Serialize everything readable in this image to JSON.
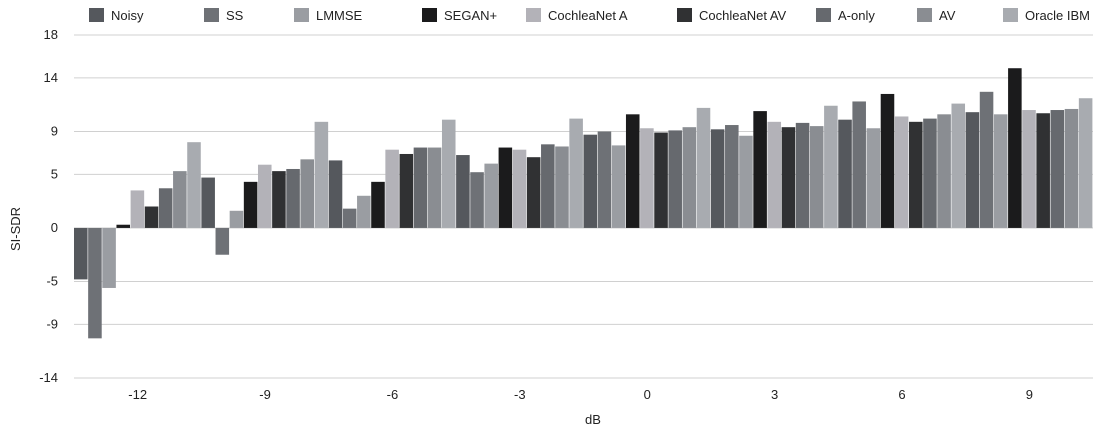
{
  "chart_data": {
    "type": "bar",
    "title": "",
    "xlabel": "dB",
    "ylabel": "SI-SDR",
    "ylim": [
      -14,
      18
    ],
    "yticks": [
      18,
      14,
      9,
      5,
      0,
      -5,
      -9,
      -14
    ],
    "grid": true,
    "legend_position": "top",
    "categories": [
      "-12",
      "-9",
      "-6",
      "-3",
      "0",
      "3",
      "6",
      "9"
    ],
    "series": [
      {
        "name": "Noisy",
        "color": "#55585d",
        "values": [
          -4.8,
          4.7,
          6.3,
          6.8,
          8.7,
          9.2,
          10.1,
          10.8
        ]
      },
      {
        "name": "SS",
        "color": "#6e7176",
        "values": [
          -10.3,
          -2.5,
          1.8,
          5.2,
          9.0,
          9.6,
          11.8,
          12.7
        ]
      },
      {
        "name": "LMMSE",
        "color": "#9a9da2",
        "values": [
          -5.6,
          1.6,
          3.0,
          6.0,
          7.7,
          8.6,
          9.3,
          10.6
        ]
      },
      {
        "name": "SEGAN+",
        "color": "#1b1b1c",
        "values": [
          0.3,
          4.3,
          4.3,
          7.5,
          10.6,
          10.9,
          12.5,
          14.9
        ]
      },
      {
        "name": "CochleaNet A",
        "color": "#b3b2b8",
        "values": [
          3.5,
          5.9,
          7.3,
          7.3,
          9.3,
          9.9,
          10.4,
          11.0
        ]
      },
      {
        "name": "CochleaNet AV",
        "color": "#303133",
        "values": [
          2.0,
          5.3,
          6.9,
          6.6,
          8.9,
          9.4,
          9.9,
          10.7
        ]
      },
      {
        "name": "A-only",
        "color": "#66696e",
        "values": [
          3.7,
          5.5,
          7.5,
          7.8,
          9.1,
          9.8,
          10.2,
          11.0
        ]
      },
      {
        "name": "AV",
        "color": "#8a8d92",
        "values": [
          5.3,
          6.4,
          7.5,
          7.6,
          9.4,
          9.5,
          10.6,
          11.1
        ]
      },
      {
        "name": "Oracle IBM",
        "color": "#a8abb0",
        "values": [
          8.0,
          9.9,
          10.1,
          10.2,
          11.2,
          11.4,
          11.6,
          12.1
        ]
      }
    ]
  }
}
